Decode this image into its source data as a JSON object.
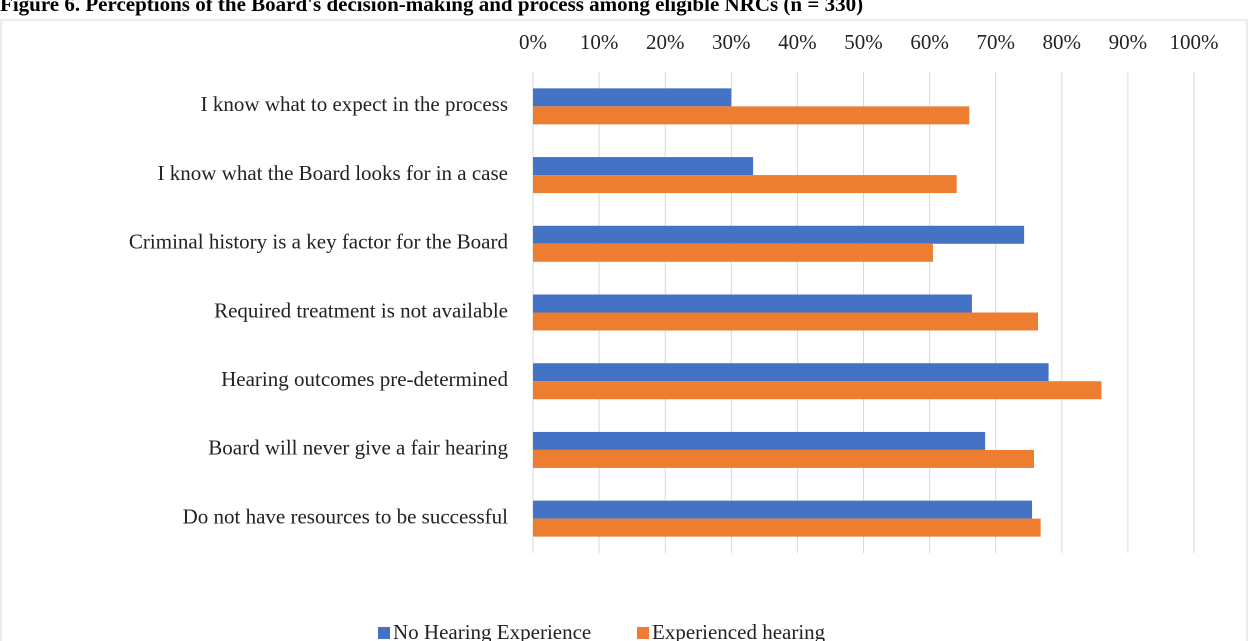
{
  "chart_data": {
    "type": "hbar",
    "title": "Figure 6. Perceptions of the Board's decision-making and process among eligible NRCs (n = 330)",
    "categories": [
      "I know what to expect in the process",
      "I know what the Board looks for in a case",
      "Criminal history is a key factor for the Board",
      "Required treatment is not available",
      "Hearing outcomes pre-determined",
      "Board will never give a fair hearing",
      "Do not have resources to be successful"
    ],
    "series": [
      {
        "name": "No Hearing Experience",
        "color": "#4472c4",
        "values": [
          30,
          33.3,
          74.3,
          66.4,
          78,
          68.4,
          75.5
        ]
      },
      {
        "name": "Experienced hearing",
        "color": "#ed7d31",
        "values": [
          66,
          64.1,
          60.5,
          76.4,
          86,
          75.8,
          76.8
        ]
      }
    ],
    "xlim": [
      0,
      100
    ],
    "xticks": [
      {
        "value": 0,
        "label": "0%"
      },
      {
        "value": 10,
        "label": "10%"
      },
      {
        "value": 20,
        "label": "20%"
      },
      {
        "value": 30,
        "label": "30%"
      },
      {
        "value": 40,
        "label": "40%"
      },
      {
        "value": 50,
        "label": "50%"
      },
      {
        "value": 60,
        "label": "60%"
      },
      {
        "value": 70,
        "label": "70%"
      },
      {
        "value": 80,
        "label": "80%"
      },
      {
        "value": 90,
        "label": "90%"
      },
      {
        "value": 100,
        "label": "100%"
      }
    ],
    "grid": true,
    "legend": "bottom"
  }
}
